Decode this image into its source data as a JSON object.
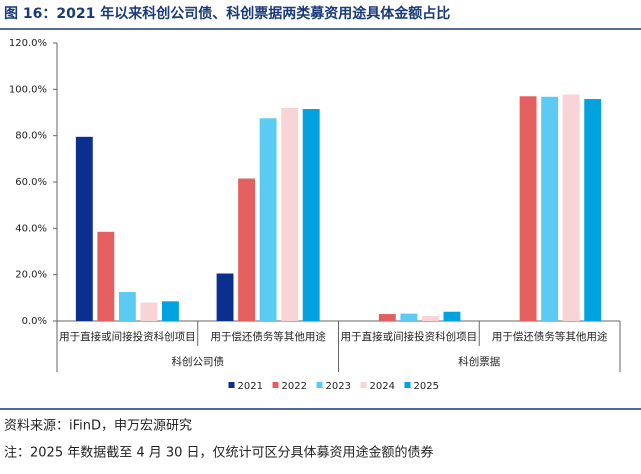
{
  "chart_data": {
    "type": "bar",
    "title": "图 16：2021 年以来科创公司债、科创票据两类募资用途具体金额占比",
    "groups": [
      {
        "name": "科创公司债",
        "categories": [
          "用于直接或间接投资科创项目",
          "用于偿还债务等其他用途"
        ]
      },
      {
        "name": "科创票据",
        "categories": [
          "用于直接或间接投资科创项目",
          "用于偿还债务等其他用途"
        ]
      }
    ],
    "series": [
      {
        "name": "2021",
        "color": "#0a2f8f",
        "values": [
          79.5,
          20.5,
          null,
          null
        ]
      },
      {
        "name": "2022",
        "color": "#e45f5f",
        "values": [
          38.5,
          61.5,
          3.0,
          97.0
        ]
      },
      {
        "name": "2023",
        "color": "#5ccbf4",
        "values": [
          12.5,
          87.5,
          3.2,
          96.8
        ]
      },
      {
        "name": "2024",
        "color": "#f9d4d6",
        "values": [
          8.0,
          92.0,
          2.2,
          97.8
        ]
      },
      {
        "name": "2025",
        "color": "#00a3e0",
        "values": [
          8.5,
          91.5,
          4.0,
          95.8
        ]
      }
    ],
    "ylim": [
      0,
      120
    ],
    "yticks": [
      {
        "value": 0,
        "label": "0.0%"
      },
      {
        "value": 20,
        "label": "20.0%"
      },
      {
        "value": 40,
        "label": "40.0%"
      },
      {
        "value": 60,
        "label": "60.0%"
      },
      {
        "value": 80,
        "label": "80.0%"
      },
      {
        "value": 100,
        "label": "100.0%"
      },
      {
        "value": 120,
        "label": "120.0%"
      }
    ],
    "grid": false,
    "legend": "bottom",
    "source": "资料来源：iFinD，申万宏源研究",
    "note": "注：2025 年数据截至 4 月 30 日，仅统计可区分具体募资用途金额的债券"
  }
}
